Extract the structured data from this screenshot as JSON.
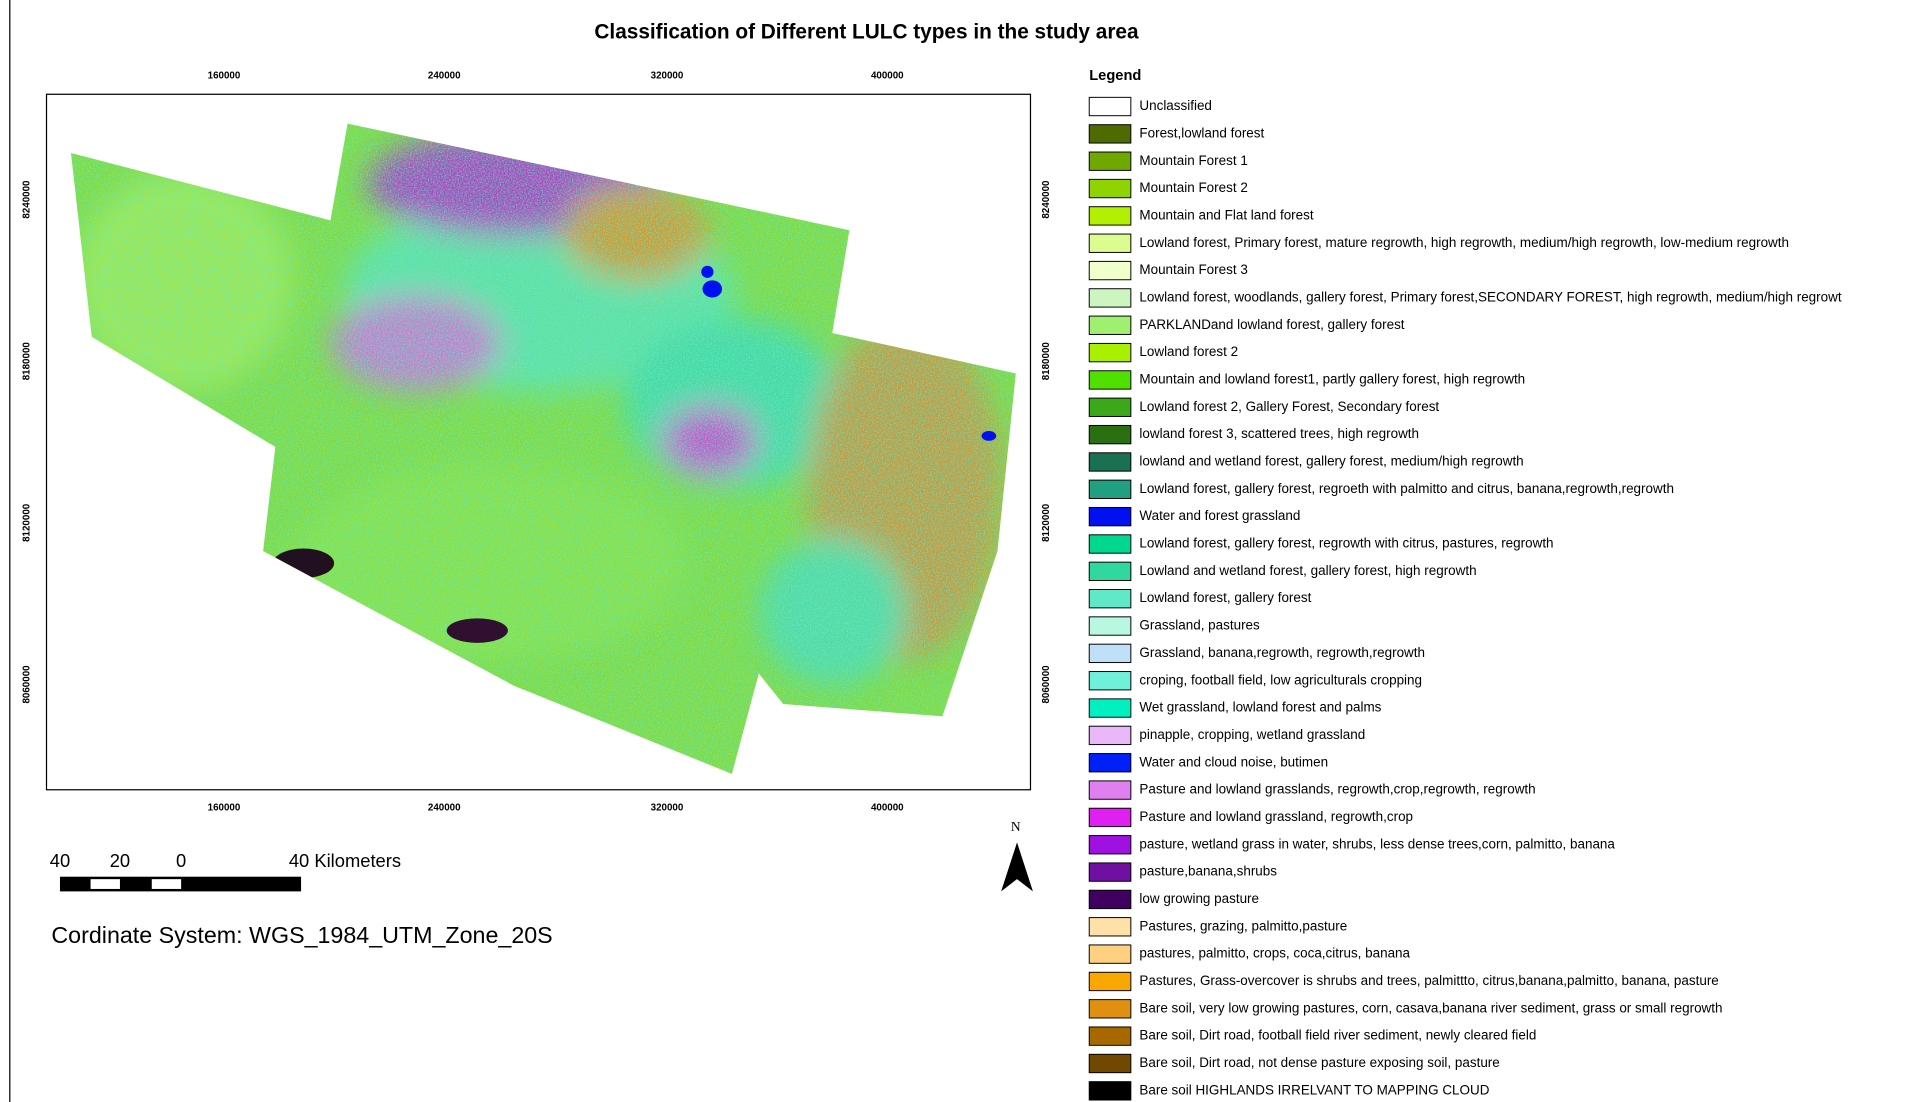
{
  "title": "Classification of Different LULC types in the study area",
  "map": {
    "top_ticks": [
      160000,
      240000,
      320000,
      400000
    ],
    "bottom_ticks": [
      160000,
      240000,
      320000,
      400000
    ],
    "left_ticks": [
      8240000,
      8180000,
      8120000,
      8060000
    ],
    "right_ticks": [
      8240000,
      8180000,
      8120000,
      8060000
    ],
    "north": "N"
  },
  "scale_bar": {
    "labels": [
      "40",
      "20",
      "0",
      "40 Kilometers"
    ]
  },
  "coordinate_system": "Cordinate System: WGS_1984_UTM_Zone_20S",
  "legend": {
    "title": "Legend",
    "items": [
      {
        "label": "Unclassified",
        "color": "#ffffff"
      },
      {
        "label": "Forest,lowland forest",
        "color": "#4d6b00"
      },
      {
        "label": "Mountain Forest 1",
        "color": "#6fa800"
      },
      {
        "label": "Mountain Forest 2",
        "color": "#8fd400"
      },
      {
        "label": "Mountain and Flat land forest",
        "color": "#b0f000"
      },
      {
        "label": "Lowland forest, Primary forest, mature regrowth, high regrowth, medium/high regrowth, low-medium regrowth",
        "color": "#dcfc90"
      },
      {
        "label": "Mountain Forest 3",
        "color": "#f0ffcc"
      },
      {
        "label": "Lowland forest, woodlands, gallery forest, Primary forest,SECONDARY FOREST, high regrowth, medium/high regrowt",
        "color": "#ccf5c0"
      },
      {
        "label": "PARKLANDand lowland forest, gallery forest",
        "color": "#a0f070"
      },
      {
        "label": "Lowland forest 2",
        "color": "#a8f000"
      },
      {
        "label": "Mountain and lowland forest1, partly gallery forest, high regrowth",
        "color": "#50e000"
      },
      {
        "label": "Lowland forest 2, Gallery Forest, Secondary forest",
        "color": "#3aa818"
      },
      {
        "label": "lowland forest 3, scattered trees, high regrowth",
        "color": "#2a7010"
      },
      {
        "label": "lowland and wetland forest, gallery forest, medium/high regrowth",
        "color": "#1a7050"
      },
      {
        "label": "Lowland forest, gallery forest, regroeth with palmitto and citrus, banana,regrowth,regrowth",
        "color": "#20a080"
      },
      {
        "label": "Water and forest grassland",
        "color": "#0010f0"
      },
      {
        "label": "Lowland forest, gallery forest, regrowth with citrus, pastures, regrowth",
        "color": "#00d890"
      },
      {
        "label": "Lowland and wetland forest, gallery forest, high regrowth",
        "color": "#30d8a0"
      },
      {
        "label": "Lowland forest, gallery forest",
        "color": "#60e8c8"
      },
      {
        "label": "Grassland, pastures",
        "color": "#b8f8e0"
      },
      {
        "label": "Grassland, banana,regrowth, regrowth,regrowth",
        "color": "#c0e0f8"
      },
      {
        "label": "croping, football field, low agriculturals cropping",
        "color": "#70f0d8"
      },
      {
        "label": "Wet grassland, lowland forest and palms",
        "color": "#00f0c0"
      },
      {
        "label": "pinapple, cropping, wetland grassland",
        "color": "#e8b8f8"
      },
      {
        "label": "Water and cloud noise, butimen",
        "color": "#0020f8"
      },
      {
        "label": "Pasture and lowland grasslands, regrowth,crop,regrowth, regrowth",
        "color": "#e080f0"
      },
      {
        "label": "Pasture and lowland grassland, regrowth,crop",
        "color": "#e020f0"
      },
      {
        "label": "pasture, wetland grass in water, shrubs, less dense trees,corn, palmitto, banana",
        "color": "#a010e0"
      },
      {
        "label": "pasture,banana,shrubs",
        "color": "#7010a0"
      },
      {
        "label": "low growing pasture",
        "color": "#400060"
      },
      {
        "label": "Pastures, grazing, palmitto,pasture",
        "color": "#ffe0a8"
      },
      {
        "label": "pastures, palmitto, crops, coca,citrus, banana",
        "color": "#ffd080"
      },
      {
        "label": "Pastures, Grass-overcover is shrubs and trees, palmittto, citrus,banana,palmitto, banana, pasture",
        "color": "#f8a800"
      },
      {
        "label": "Bare soil, very low growing pastures, corn, casava,banana river sediment, grass or small regrowth",
        "color": "#e09010"
      },
      {
        "label": "Bare soil, Dirt road, football field river sediment, newly cleared field",
        "color": "#a86800"
      },
      {
        "label": "Bare soil, Dirt road, not dense pasture exposing soil, pasture",
        "color": "#704800"
      },
      {
        "label": "Bare soil HIGHLANDS IRRELVANT TO MAPPING CLOUD",
        "color": "#000000"
      }
    ]
  }
}
